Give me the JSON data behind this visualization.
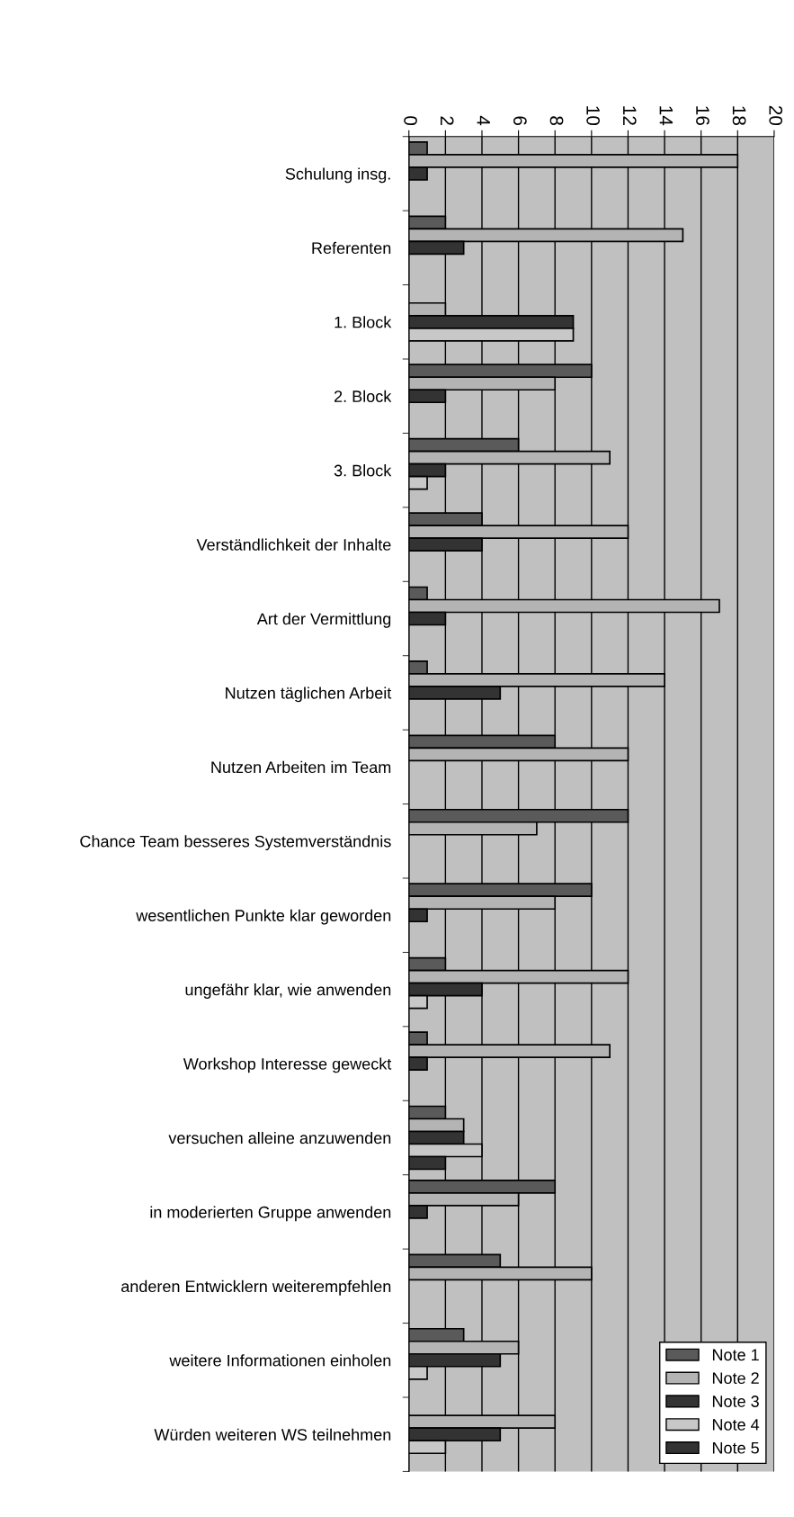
{
  "chart_data": {
    "type": "bar",
    "orientation": "horizontal",
    "categories": [
      "Schulung insg.",
      "Referenten",
      "1. Block",
      "2. Block",
      "3. Block",
      "Verständlichkeit der Inhalte",
      "Art der Vermittlung",
      "Nutzen täglichen Arbeit",
      "Nutzen Arbeiten im Team",
      "Chance Team besseres Systemverständnis",
      "wesentlichen Punkte klar geworden",
      "ungefähr klar, wie anwenden",
      "Workshop Interesse geweckt",
      "versuchen alleine anzuwenden",
      "in moderierten Gruppe anwenden",
      "anderen Entwicklern weiterempfehlen",
      "weitere Informationen einholen",
      "Würden weiteren WS teilnehmen"
    ],
    "series": [
      {
        "name": "Note 1",
        "color": "#5a5a5a",
        "values": [
          1,
          2,
          null,
          10,
          6,
          4,
          1,
          1,
          8,
          12,
          10,
          2,
          1,
          2,
          8,
          5,
          3,
          null
        ]
      },
      {
        "name": "Note 2",
        "color": "#b4b4b4",
        "values": [
          18,
          15,
          2,
          8,
          11,
          12,
          17,
          14,
          12,
          7,
          8,
          12,
          11,
          3,
          6,
          10,
          6,
          8
        ]
      },
      {
        "name": "Note 3",
        "color": "#333333",
        "values": [
          1,
          3,
          9,
          2,
          2,
          4,
          2,
          5,
          null,
          null,
          1,
          4,
          1,
          3,
          1,
          null,
          5,
          5
        ]
      },
      {
        "name": "Note 4",
        "color": "#c8c8c8",
        "values": [
          null,
          null,
          9,
          null,
          1,
          null,
          null,
          null,
          null,
          null,
          null,
          1,
          null,
          4,
          null,
          null,
          1,
          2
        ]
      },
      {
        "name": "Note 5",
        "color": "#333333",
        "values": [
          null,
          null,
          null,
          null,
          null,
          null,
          null,
          null,
          null,
          null,
          null,
          null,
          null,
          2,
          null,
          null,
          null,
          null
        ]
      }
    ],
    "xlim": [
      0,
      20
    ],
    "xticks": [
      0,
      2,
      4,
      6,
      8,
      10,
      12,
      14,
      16,
      18,
      20
    ],
    "grid": "x",
    "legend": "bottom right"
  }
}
